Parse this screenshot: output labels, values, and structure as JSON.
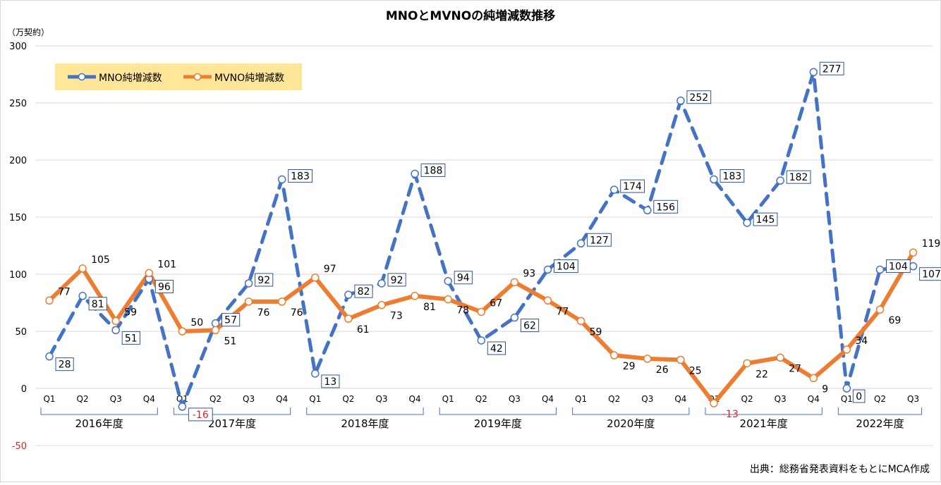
{
  "chart_data": {
    "type": "line",
    "title": "MNOとMVNOの純増減数推移",
    "ylabel": "（万契約）",
    "ylim": [
      -50,
      300
    ],
    "yticks": [
      300,
      250,
      200,
      150,
      100,
      50,
      0,
      -50
    ],
    "grid": true,
    "legend_position": "top-left",
    "source_note": "出典：総務省発表資料をもとにMCA作成",
    "quarters": [
      "Q1",
      "Q2",
      "Q3",
      "Q4",
      "Q1",
      "Q2",
      "Q3",
      "Q4",
      "Q1",
      "Q2",
      "Q3",
      "Q4",
      "Q1",
      "Q2",
      "Q3",
      "Q4",
      "Q1",
      "Q2",
      "Q3",
      "Q4",
      "Q1",
      "Q2",
      "Q3",
      "Q4",
      "Q1",
      "Q2",
      "Q3"
    ],
    "years": [
      {
        "label": "2016年度",
        "start": 0,
        "end": 3
      },
      {
        "label": "2017年度",
        "start": 4,
        "end": 7
      },
      {
        "label": "2018年度",
        "start": 8,
        "end": 11
      },
      {
        "label": "2019年度",
        "start": 12,
        "end": 15
      },
      {
        "label": "2020年度",
        "start": 16,
        "end": 19
      },
      {
        "label": "2021年度",
        "start": 20,
        "end": 23
      },
      {
        "label": "2022年度",
        "start": 24,
        "end": 26
      }
    ],
    "series": [
      {
        "name": "MNO純増減数",
        "color": "#4472C4",
        "style": "dashed",
        "values": [
          28,
          81,
          51,
          96,
          -16,
          57,
          92,
          183,
          13,
          82,
          92,
          188,
          94,
          42,
          62,
          104,
          127,
          174,
          156,
          252,
          183,
          145,
          182,
          277,
          0,
          104,
          107
        ]
      },
      {
        "name": "MVNO純増減数",
        "color": "#ED7D31",
        "style": "solid",
        "values": [
          77,
          105,
          59,
          101,
          50,
          51,
          76,
          76,
          97,
          61,
          73,
          81,
          78,
          67,
          93,
          77,
          59,
          29,
          26,
          25,
          -13,
          22,
          27,
          9,
          34,
          69,
          119
        ]
      }
    ],
    "colors": {
      "negative_label": "#E02020",
      "legend_background": "#FFE699",
      "label_box_border": "#2F5597",
      "grid": "#D9D9D9",
      "year_bracket": "#4472C4"
    }
  }
}
